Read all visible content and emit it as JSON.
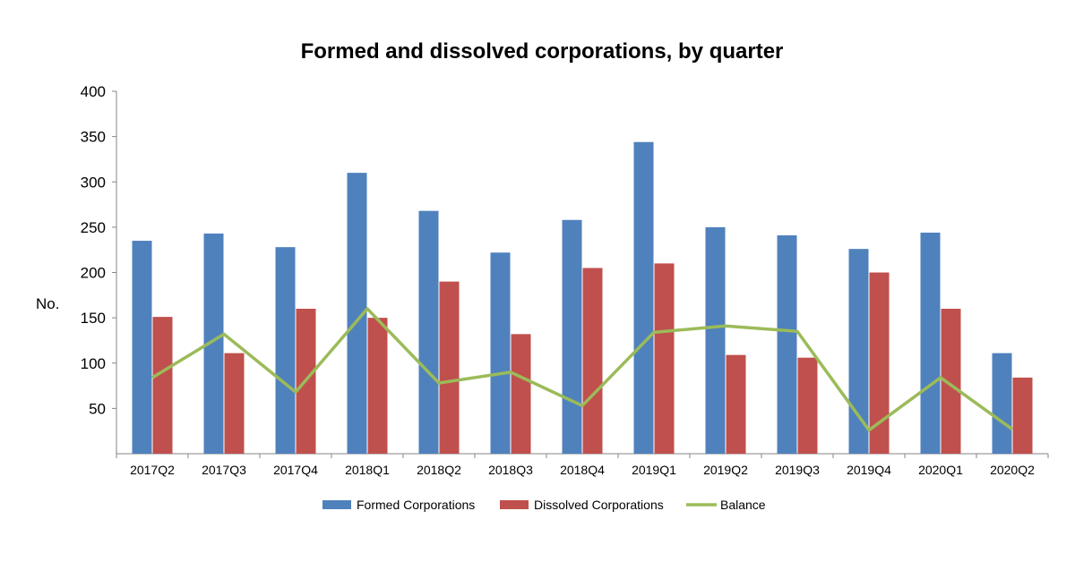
{
  "chart_data": {
    "type": "bar",
    "title": "Formed and dissolved corporations, by quarter",
    "xlabel": "",
    "ylabel": "No.",
    "ylim": [
      0,
      400
    ],
    "yticks": [
      "50",
      "100",
      "150",
      "200",
      "250",
      "300",
      "350",
      "400"
    ],
    "categories": [
      "2017Q2",
      "2017Q3",
      "2017Q4",
      "2018Q1",
      "2018Q2",
      "2018Q3",
      "2018Q4",
      "2019Q1",
      "2019Q2",
      "2019Q3",
      "2019Q4",
      "2020Q1",
      "2020Q2"
    ],
    "series": [
      {
        "name": "Formed Corporations",
        "type": "bar",
        "color": "#4f81bd",
        "values": [
          235,
          243,
          228,
          310,
          268,
          222,
          258,
          344,
          250,
          241,
          226,
          244,
          111
        ]
      },
      {
        "name": "Dissolved Corporations",
        "type": "bar",
        "color": "#c0504d",
        "values": [
          151,
          111,
          160,
          150,
          190,
          132,
          205,
          210,
          109,
          106,
          200,
          160,
          84
        ]
      },
      {
        "name": "Balance",
        "type": "line",
        "color": "#9bbb59",
        "values": [
          84,
          132,
          68,
          160,
          78,
          90,
          53,
          134,
          141,
          135,
          26,
          84,
          27
        ]
      }
    ],
    "grid": false,
    "legend": "bottom"
  }
}
